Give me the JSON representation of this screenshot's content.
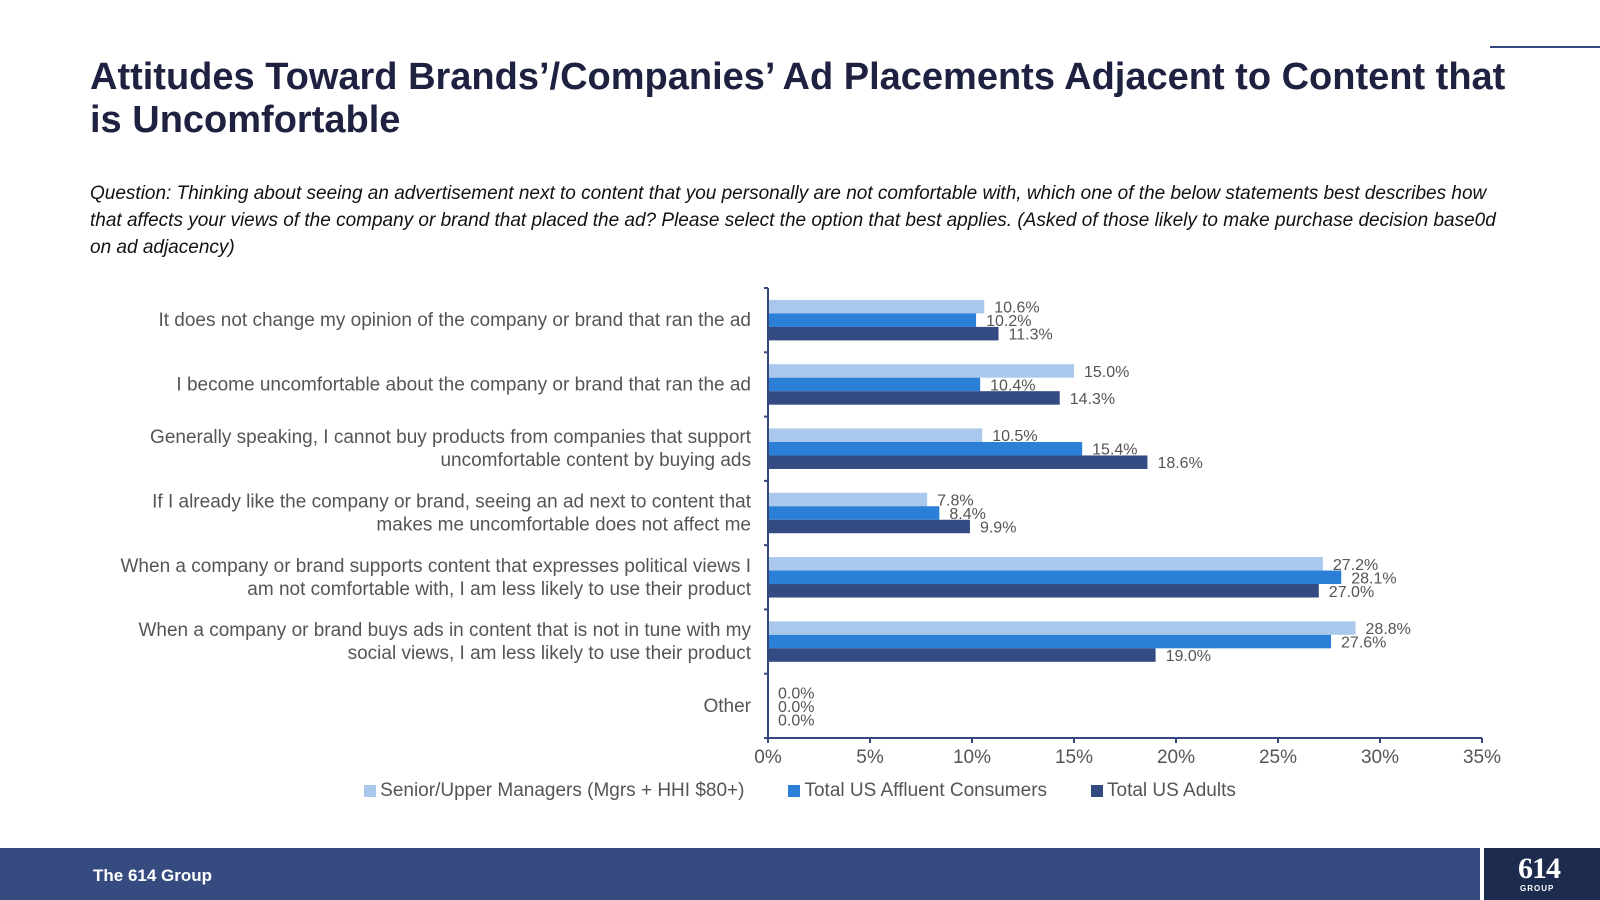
{
  "slide": {
    "title": "Attitudes Toward Brands’/Companies’ Ad Placements Adjacent to Content that is Uncomfortable",
    "question": "Question: Thinking about seeing an advertisement next to content that you personally are not comfortable with, which one of the below statements best describes how that affects your views of the company or brand that placed the ad? Please select the option that best applies. (Asked of those likely to make purchase decision base0d on ad adjacency)"
  },
  "footer": {
    "company": "The 614 Group",
    "logo_number": "614",
    "logo_word": "GROUP"
  },
  "colors": {
    "title": "#1e2140",
    "footer": "#364c80",
    "series": [
      "#a9c8ec",
      "#2b7fd6",
      "#344a82"
    ]
  },
  "chart_data": {
    "type": "bar",
    "orientation": "horizontal",
    "categories": [
      [
        "It does not change my opinion of the company or brand that ran the ad"
      ],
      [
        "I become uncomfortable about the company or brand that ran the ad"
      ],
      [
        "Generally speaking, I cannot buy products from companies that support",
        "uncomfortable content by buying ads"
      ],
      [
        "If I already like the company or brand, seeing an ad next to content that",
        "makes me uncomfortable does not affect me"
      ],
      [
        "When a company or brand supports content that expresses political views I",
        "am not comfortable with, I am less likely to use their product"
      ],
      [
        "When a company or brand buys ads in content that is not in tune with my",
        "social views, I am less likely to use their product"
      ],
      [
        "Other"
      ]
    ],
    "series": [
      {
        "name": "Senior/Upper Managers (Mgrs + HHI $80+)",
        "values": [
          10.6,
          15.0,
          10.5,
          7.8,
          27.2,
          28.8,
          0.0
        ]
      },
      {
        "name": "Total US Affluent Consumers",
        "values": [
          10.2,
          10.4,
          15.4,
          8.4,
          28.1,
          27.6,
          0.0
        ]
      },
      {
        "name": "Total US Adults",
        "values": [
          11.3,
          14.3,
          18.6,
          9.9,
          27.0,
          19.0,
          0.0
        ]
      }
    ],
    "xlim": [
      0,
      35
    ],
    "xticks": [
      "0%",
      "5%",
      "10%",
      "15%",
      "20%",
      "25%",
      "30%",
      "35%"
    ],
    "value_suffix": "%",
    "legend_position": "bottom",
    "grid": false
  }
}
